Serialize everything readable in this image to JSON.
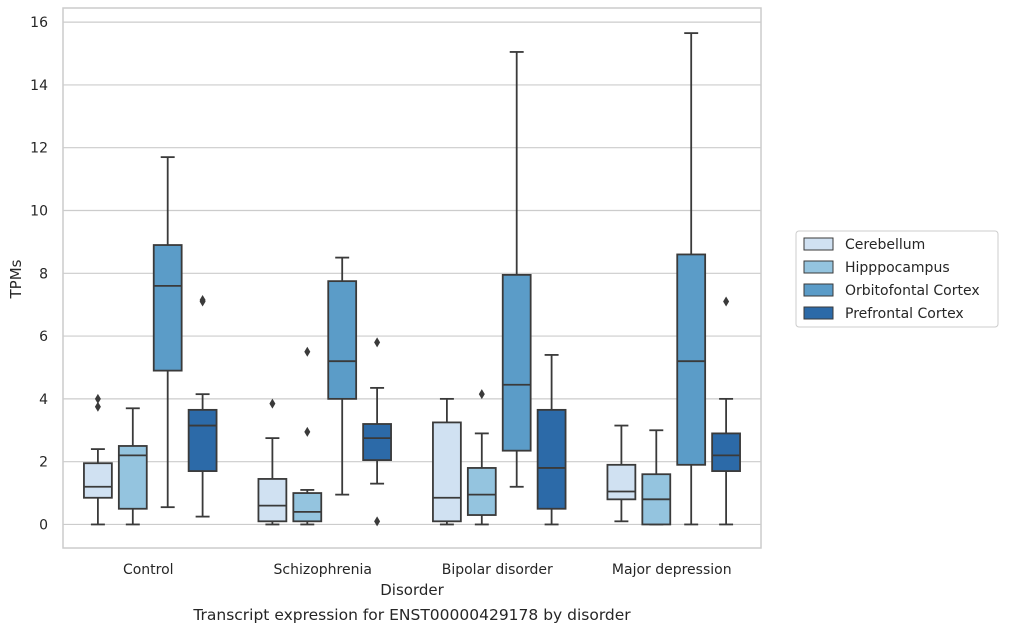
{
  "caption": "Transcript expression for ENST00000429178 by disorder",
  "chart_data": {
    "type": "box",
    "title": "",
    "xlabel": "Disorder",
    "ylabel": "TPMs",
    "ylim": [
      -0.75,
      16.45
    ],
    "yticks": [
      0,
      2,
      4,
      6,
      8,
      10,
      12,
      14,
      16
    ],
    "grid": "horizontal",
    "legend_placement": "right",
    "categories": [
      "Control",
      "Schizophrenia",
      "Bipolar disorder",
      "Major depression"
    ],
    "series": [
      {
        "name": "Cerebellum",
        "color": "#d0e1f2",
        "boxes": [
          {
            "whisker_low": 0.0,
            "q1": 0.85,
            "median": 1.2,
            "q3": 1.95,
            "whisker_high": 2.4,
            "outliers": [
              3.75,
              4.0
            ]
          },
          {
            "whisker_low": 0.0,
            "q1": 0.1,
            "median": 0.6,
            "q3": 1.45,
            "whisker_high": 2.75,
            "outliers": [
              3.85
            ]
          },
          {
            "whisker_low": 0.0,
            "q1": 0.1,
            "median": 0.85,
            "q3": 3.25,
            "whisker_high": 4.0,
            "outliers": []
          },
          {
            "whisker_low": 0.1,
            "q1": 0.8,
            "median": 1.05,
            "q3": 1.9,
            "whisker_high": 3.15,
            "outliers": []
          }
        ]
      },
      {
        "name": "Hipppocampus",
        "color": "#94c4df",
        "boxes": [
          {
            "whisker_low": 0.0,
            "q1": 0.5,
            "median": 2.2,
            "q3": 2.5,
            "whisker_high": 3.7,
            "outliers": []
          },
          {
            "whisker_low": 0.0,
            "q1": 0.1,
            "median": 0.4,
            "q3": 1.0,
            "whisker_high": 1.1,
            "outliers": [
              2.95,
              5.5
            ]
          },
          {
            "whisker_low": 0.0,
            "q1": 0.3,
            "median": 0.95,
            "q3": 1.8,
            "whisker_high": 2.9,
            "outliers": [
              4.15
            ]
          },
          {
            "whisker_low": 0.0,
            "q1": 0.0,
            "median": 0.8,
            "q3": 1.6,
            "whisker_high": 3.0,
            "outliers": []
          }
        ]
      },
      {
        "name": "Orbitofontal Cortex",
        "color": "#5b9cc8",
        "boxes": [
          {
            "whisker_low": 0.55,
            "q1": 4.9,
            "median": 7.6,
            "q3": 8.9,
            "whisker_high": 11.7,
            "outliers": []
          },
          {
            "whisker_low": 0.95,
            "q1": 4.0,
            "median": 5.2,
            "q3": 7.75,
            "whisker_high": 8.5,
            "outliers": []
          },
          {
            "whisker_low": 1.2,
            "q1": 2.35,
            "median": 4.45,
            "q3": 7.95,
            "whisker_high": 15.05,
            "outliers": []
          },
          {
            "whisker_low": 0.0,
            "q1": 1.9,
            "median": 5.2,
            "q3": 8.6,
            "whisker_high": 15.65,
            "outliers": []
          }
        ]
      },
      {
        "name": "Prefrontal Cortex",
        "color": "#2c6aa8",
        "boxes": [
          {
            "whisker_low": 0.25,
            "q1": 1.7,
            "median": 3.15,
            "q3": 3.65,
            "whisker_high": 4.15,
            "outliers": [
              7.1,
              7.15
            ]
          },
          {
            "whisker_low": 1.3,
            "q1": 2.05,
            "median": 2.75,
            "q3": 3.2,
            "whisker_high": 4.35,
            "outliers": [
              0.1,
              5.8
            ]
          },
          {
            "whisker_low": 0.0,
            "q1": 0.5,
            "median": 1.8,
            "q3": 3.65,
            "whisker_high": 5.4,
            "outliers": []
          },
          {
            "whisker_low": 0.0,
            "q1": 1.7,
            "median": 2.2,
            "q3": 2.9,
            "whisker_high": 4.0,
            "outliers": [
              7.1
            ]
          }
        ]
      }
    ]
  }
}
